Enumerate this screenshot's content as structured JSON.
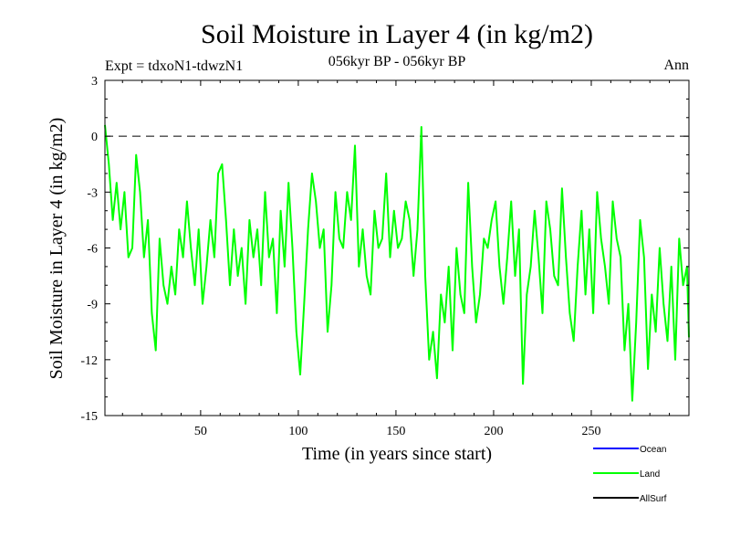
{
  "chart_data": {
    "type": "line",
    "title": "Soil Moisture in Layer 4 (in kg/m2)",
    "subtitle_left": "Expt = tdxoN1-tdwzN1",
    "subtitle_center": "056kyr BP - 056kyr BP",
    "subtitle_right": "Ann",
    "xlabel": "Time (in years since start)",
    "ylabel": "Soil Moisture in Layer 4 (in kg/m2)",
    "xlim": [
      1,
      300
    ],
    "ylim": [
      -15,
      3
    ],
    "x_ticks": [
      50,
      100,
      150,
      200,
      250
    ],
    "x_tick_labels": [
      "50",
      "100",
      "150",
      "200",
      "250"
    ],
    "y_ticks": [
      3,
      0,
      -3,
      -6,
      -9,
      -12,
      -15
    ],
    "y_tick_labels": [
      "3",
      "0",
      "-3",
      "-6",
      "-9",
      "-12",
      "-15"
    ],
    "reference_line": 0,
    "legend": [
      {
        "name": "Ocean",
        "color": "#0000ff"
      },
      {
        "name": "Land",
        "color": "#00ff00"
      },
      {
        "name": "AllSurf",
        "color": "#000000"
      }
    ],
    "series": [
      {
        "name": "Land",
        "color": "#00ff00",
        "x_start": 1,
        "x_step": 2,
        "values": [
          0.6,
          -1.5,
          -4.5,
          -2.5,
          -5.0,
          -3.0,
          -6.5,
          -6.0,
          -1.0,
          -3.0,
          -6.5,
          -4.5,
          -9.5,
          -11.5,
          -5.5,
          -8.0,
          -9.0,
          -7.0,
          -8.5,
          -5.0,
          -6.5,
          -3.5,
          -6.0,
          -8.0,
          -5.0,
          -9.0,
          -7.0,
          -4.5,
          -6.5,
          -2.0,
          -1.5,
          -4.5,
          -8.0,
          -5.0,
          -7.5,
          -6.0,
          -9.0,
          -4.5,
          -6.5,
          -5.0,
          -8.0,
          -3.0,
          -6.5,
          -5.5,
          -9.5,
          -4.0,
          -7.0,
          -2.5,
          -6.0,
          -10.5,
          -12.8,
          -9.0,
          -5.0,
          -2.0,
          -3.5,
          -6.0,
          -5.0,
          -10.5,
          -8.0,
          -3.0,
          -5.5,
          -6.0,
          -3.0,
          -4.5,
          -0.5,
          -7.0,
          -5.0,
          -7.5,
          -8.5,
          -4.0,
          -6.0,
          -5.5,
          -2.0,
          -6.5,
          -4.0,
          -6.0,
          -5.5,
          -3.5,
          -4.5,
          -7.5,
          -5.0,
          0.5,
          -7.5,
          -12.0,
          -10.5,
          -13.0,
          -8.5,
          -10.0,
          -7.0,
          -11.5,
          -6.0,
          -8.5,
          -9.5,
          -2.5,
          -7.0,
          -10.0,
          -8.5,
          -5.5,
          -6.0,
          -4.5,
          -3.5,
          -7.0,
          -9.0,
          -6.5,
          -3.5,
          -7.5,
          -5.0,
          -13.3,
          -8.5,
          -7.0,
          -4.0,
          -6.5,
          -9.5,
          -3.5,
          -5.0,
          -7.5,
          -8.0,
          -2.8,
          -6.5,
          -9.5,
          -11.0,
          -7.0,
          -4.0,
          -8.5,
          -5.0,
          -9.5,
          -3.0,
          -5.5,
          -7.0,
          -9.0,
          -3.5,
          -5.5,
          -6.5,
          -11.5,
          -9.0,
          -14.2,
          -10.0,
          -4.5,
          -6.5,
          -12.5,
          -8.5,
          -10.5,
          -6.0,
          -9.0,
          -11.0,
          -7.0,
          -12.0,
          -5.5,
          -8.0,
          -7.0,
          -10.8
        ]
      }
    ]
  }
}
